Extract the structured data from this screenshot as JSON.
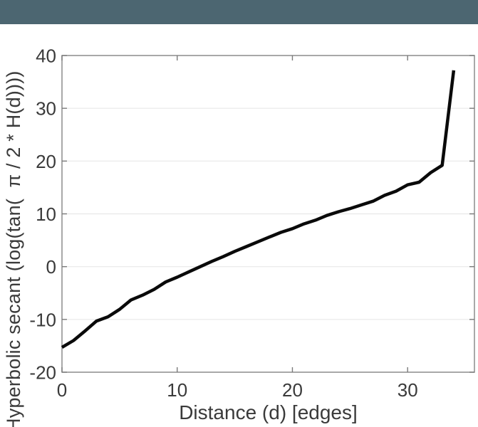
{
  "header": {
    "color": "#4c6671"
  },
  "chart_data": {
    "type": "line",
    "title": "",
    "xlabel": "Distance (d) [edges]",
    "ylabel": "Hyperbolic secant (log(tan(  π / 2 * H(d))))",
    "x": [
      0,
      1,
      2,
      3,
      4,
      5,
      6,
      7,
      8,
      9,
      10,
      11,
      12,
      13,
      14,
      15,
      16,
      17,
      18,
      19,
      20,
      21,
      22,
      23,
      24,
      25,
      26,
      27,
      28,
      29,
      30,
      31,
      32,
      33,
      34
    ],
    "y": [
      -15.3,
      -14.0,
      -12.2,
      -10.3,
      -9.5,
      -8.1,
      -6.3,
      -5.4,
      -4.3,
      -2.9,
      -2.0,
      -1.0,
      0.0,
      1.0,
      1.9,
      2.9,
      3.8,
      4.7,
      5.6,
      6.5,
      7.2,
      8.1,
      8.8,
      9.7,
      10.4,
      11.0,
      11.7,
      12.4,
      13.5,
      14.3,
      15.5,
      16.0,
      17.8,
      19.2,
      37.2
    ],
    "xlim": [
      0,
      35.8
    ],
    "ylim": [
      -20,
      40
    ],
    "xticks": [
      0,
      10,
      20,
      30
    ],
    "yticks": [
      -20,
      -10,
      0,
      10,
      20,
      30,
      40
    ],
    "grid": "horizontal-only",
    "legend": "none",
    "line_color": "#0a0a0a",
    "line_width": 4.5,
    "axis_color": "#8c8c8c",
    "tick_color": "#7a7a7a",
    "grid_color": "#e8e8e8",
    "text_color": "#3a3a3a",
    "tick_label_size": 26,
    "plot_background": "#ffffff"
  }
}
